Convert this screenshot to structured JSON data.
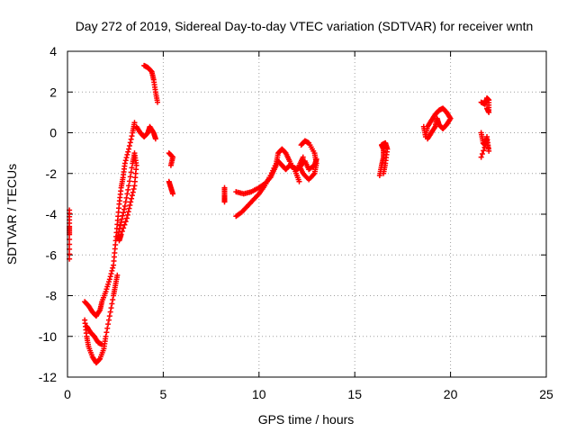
{
  "chart_data": {
    "type": "scatter",
    "title": "Day 272 of 2019, Sidereal Day-to-day VTEC variation (SDTVAR) for receiver wntn",
    "xlabel": "GPS time / hours",
    "ylabel": "SDTVAR / TECUs",
    "xlim": [
      0,
      25
    ],
    "ylim": [
      -12,
      4
    ],
    "xticks": [
      0,
      5,
      10,
      15,
      20,
      25
    ],
    "xtick_labels": [
      "0",
      "5",
      "10",
      "15",
      "20",
      "25"
    ],
    "yticks": [
      -12,
      -10,
      -8,
      -6,
      -4,
      -2,
      0,
      2,
      4
    ],
    "ytick_labels": [
      "-12",
      "-10",
      "-8",
      "-6",
      "-4",
      "-2",
      "0",
      "2",
      "4"
    ],
    "grid": true,
    "marker": "+",
    "series_color": "#ff0000",
    "series": [
      {
        "name": "SDTVAR",
        "tracks": [
          [
            [
              0.1,
              -3.8
            ],
            [
              0.1,
              -4.6
            ],
            [
              0.1,
              -5.0
            ],
            [
              0.1,
              -6.2
            ]
          ],
          [
            [
              0.9,
              -8.3
            ],
            [
              1.1,
              -8.5
            ],
            [
              1.3,
              -8.8
            ],
            [
              1.5,
              -9.0
            ],
            [
              1.7,
              -8.7
            ],
            [
              1.8,
              -8.3
            ],
            [
              2.0,
              -7.8
            ],
            [
              2.2,
              -7.2
            ],
            [
              2.4,
              -6.5
            ],
            [
              2.5,
              -5.5
            ],
            [
              2.6,
              -4.5
            ],
            [
              2.7,
              -3.5
            ],
            [
              2.8,
              -2.7
            ],
            [
              2.9,
              -2.2
            ],
            [
              3.0,
              -1.5
            ],
            [
              3.2,
              -0.8
            ],
            [
              3.4,
              0.0
            ],
            [
              3.5,
              0.5
            ]
          ],
          [
            [
              0.9,
              -9.2
            ],
            [
              1.0,
              -10.0
            ],
            [
              1.1,
              -10.5
            ],
            [
              1.3,
              -11.0
            ],
            [
              1.5,
              -11.3
            ],
            [
              1.7,
              -11.1
            ],
            [
              1.9,
              -10.6
            ],
            [
              2.0,
              -10.0
            ],
            [
              2.2,
              -9.0
            ],
            [
              2.4,
              -8.0
            ],
            [
              2.5,
              -7.5
            ],
            [
              2.6,
              -7.0
            ]
          ],
          [
            [
              1.0,
              -9.5
            ],
            [
              1.2,
              -9.8
            ],
            [
              1.4,
              -10.0
            ],
            [
              1.6,
              -10.3
            ],
            [
              1.8,
              -10.4
            ]
          ],
          [
            [
              2.6,
              -5.2
            ],
            [
              2.8,
              -4.4
            ],
            [
              3.0,
              -3.6
            ],
            [
              3.2,
              -2.6
            ],
            [
              3.4,
              -1.5
            ],
            [
              3.5,
              -1.0
            ],
            [
              3.6,
              -1.6
            ],
            [
              3.5,
              -2.6
            ],
            [
              3.3,
              -3.4
            ],
            [
              3.1,
              -4.2
            ],
            [
              2.8,
              -5.0
            ],
            [
              2.7,
              -5.3
            ]
          ],
          [
            [
              3.6,
              0.3
            ],
            [
              3.8,
              0.0
            ],
            [
              4.0,
              -0.2
            ],
            [
              4.2,
              0.0
            ],
            [
              4.3,
              0.3
            ],
            [
              4.5,
              0.0
            ],
            [
              4.6,
              -0.3
            ]
          ],
          [
            [
              4.0,
              3.3
            ],
            [
              4.2,
              3.2
            ],
            [
              4.4,
              3.0
            ],
            [
              4.5,
              2.6
            ],
            [
              4.6,
              2.0
            ],
            [
              4.7,
              1.5
            ]
          ],
          [
            [
              5.3,
              -1.0
            ],
            [
              5.5,
              -1.2
            ],
            [
              5.4,
              -1.6
            ]
          ],
          [
            [
              5.3,
              -2.4
            ],
            [
              5.4,
              -2.7
            ],
            [
              5.5,
              -3.0
            ]
          ],
          [
            [
              8.2,
              -2.7
            ],
            [
              8.2,
              -3.1
            ],
            [
              8.2,
              -3.4
            ]
          ],
          [
            [
              8.8,
              -2.9
            ],
            [
              9.2,
              -3.0
            ],
            [
              9.6,
              -2.9
            ],
            [
              10.0,
              -2.7
            ],
            [
              10.3,
              -2.5
            ],
            [
              10.6,
              -2.2
            ],
            [
              10.8,
              -1.8
            ],
            [
              11.0,
              -1.4
            ],
            [
              11.2,
              -1.6
            ],
            [
              11.4,
              -1.8
            ],
            [
              11.6,
              -1.6
            ],
            [
              11.8,
              -1.7
            ],
            [
              12.0,
              -1.8
            ],
            [
              12.2,
              -1.6
            ],
            [
              12.4,
              -1.4
            ],
            [
              12.6,
              -1.8
            ],
            [
              12.9,
              -1.6
            ],
            [
              13.0,
              -1.3
            ]
          ],
          [
            [
              8.8,
              -4.1
            ],
            [
              9.1,
              -3.9
            ],
            [
              9.4,
              -3.6
            ],
            [
              9.7,
              -3.3
            ],
            [
              10.0,
              -3.0
            ],
            [
              10.3,
              -2.6
            ],
            [
              10.6,
              -2.1
            ],
            [
              10.9,
              -1.5
            ],
            [
              11.0,
              -1.0
            ],
            [
              11.2,
              -0.8
            ],
            [
              11.4,
              -1.0
            ],
            [
              11.6,
              -1.4
            ],
            [
              11.9,
              -1.9
            ],
            [
              12.1,
              -2.4
            ]
          ],
          [
            [
              12.2,
              -0.6
            ],
            [
              12.4,
              -0.4
            ],
            [
              12.6,
              -0.5
            ],
            [
              12.9,
              -1.0
            ],
            [
              13.0,
              -1.5
            ],
            [
              12.9,
              -2.0
            ],
            [
              12.6,
              -2.3
            ],
            [
              12.3,
              -2.0
            ],
            [
              12.1,
              -1.6
            ],
            [
              12.3,
              -1.2
            ]
          ],
          [
            [
              16.3,
              -2.1
            ],
            [
              16.4,
              -1.6
            ],
            [
              16.5,
              -1.2
            ],
            [
              16.5,
              -0.8
            ],
            [
              16.4,
              -0.6
            ],
            [
              16.6,
              -0.5
            ],
            [
              16.7,
              -0.8
            ],
            [
              16.6,
              -1.5
            ],
            [
              16.5,
              -2.0
            ]
          ],
          [
            [
              18.6,
              0.3
            ],
            [
              18.7,
              -0.2
            ],
            [
              18.8,
              0.3
            ],
            [
              19.0,
              0.6
            ],
            [
              19.2,
              0.9
            ],
            [
              19.4,
              1.1
            ],
            [
              19.6,
              1.2
            ],
            [
              19.8,
              1.0
            ],
            [
              20.0,
              0.7
            ],
            [
              19.8,
              0.4
            ],
            [
              19.6,
              0.2
            ],
            [
              19.4,
              0.4
            ],
            [
              19.3,
              0.7
            ],
            [
              19.2,
              0.3
            ],
            [
              19.0,
              0.0
            ],
            [
              18.8,
              -0.3
            ]
          ],
          [
            [
              21.6,
              1.5
            ],
            [
              21.8,
              1.4
            ],
            [
              21.9,
              1.7
            ],
            [
              22.0,
              1.6
            ],
            [
              22.0,
              1.0
            ],
            [
              21.9,
              1.2
            ]
          ],
          [
            [
              21.6,
              0.0
            ],
            [
              21.7,
              -0.5
            ],
            [
              21.8,
              -0.6
            ],
            [
              21.9,
              -0.2
            ],
            [
              22.0,
              -0.9
            ],
            [
              21.9,
              -0.4
            ],
            [
              21.6,
              -1.2
            ]
          ]
        ]
      }
    ]
  }
}
